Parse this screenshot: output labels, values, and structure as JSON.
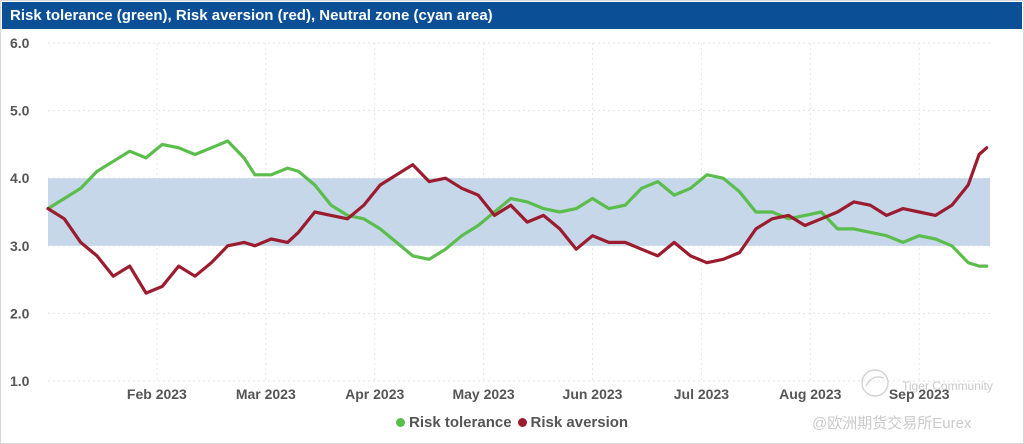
{
  "chart_data": {
    "type": "line",
    "title": "Risk tolerance (green), Risk aversion (red), Neutral zone (cyan area)",
    "xlabel": "",
    "ylabel": "",
    "ylim": [
      1.0,
      6.0
    ],
    "yticks": [
      "1.0",
      "2.0",
      "3.0",
      "4.0",
      "5.0",
      "6.0"
    ],
    "xlim": [
      0,
      8.65
    ],
    "xticks": [
      {
        "label": "Feb 2023",
        "x": 1.0
      },
      {
        "label": "Mar 2023",
        "x": 2.0
      },
      {
        "label": "Apr 2023",
        "x": 3.0
      },
      {
        "label": "May 2023",
        "x": 4.0
      },
      {
        "label": "Jun 2023",
        "x": 5.0
      },
      {
        "label": "Jul 2023",
        "x": 6.0
      },
      {
        "label": "Aug 2023",
        "x": 7.0
      },
      {
        "label": "Sep 2023",
        "x": 8.0
      }
    ],
    "band": {
      "name": "Neutral zone",
      "low": 3.0,
      "high": 4.0,
      "color": "#c5d7e9"
    },
    "series": [
      {
        "name": "Risk tolerance",
        "color": "#5bbd4b",
        "x": [
          0.0,
          0.15,
          0.3,
          0.45,
          0.6,
          0.75,
          0.9,
          1.05,
          1.2,
          1.35,
          1.5,
          1.65,
          1.8,
          1.9,
          2.05,
          2.2,
          2.3,
          2.45,
          2.6,
          2.75,
          2.9,
          3.05,
          3.2,
          3.35,
          3.5,
          3.65,
          3.8,
          3.95,
          4.1,
          4.25,
          4.4,
          4.55,
          4.7,
          4.85,
          5.0,
          5.15,
          5.3,
          5.45,
          5.6,
          5.75,
          5.9,
          6.05,
          6.2,
          6.35,
          6.5,
          6.65,
          6.8,
          6.95,
          7.1,
          7.25,
          7.4,
          7.55,
          7.7,
          7.85,
          8.0,
          8.15,
          8.3,
          8.45,
          8.55,
          8.62
        ],
        "values": [
          3.55,
          3.7,
          3.85,
          4.1,
          4.25,
          4.4,
          4.3,
          4.5,
          4.45,
          4.35,
          4.45,
          4.55,
          4.3,
          4.05,
          4.05,
          4.15,
          4.1,
          3.9,
          3.6,
          3.45,
          3.4,
          3.25,
          3.05,
          2.85,
          2.8,
          2.95,
          3.15,
          3.3,
          3.5,
          3.7,
          3.65,
          3.55,
          3.5,
          3.55,
          3.7,
          3.55,
          3.6,
          3.85,
          3.95,
          3.75,
          3.85,
          4.05,
          4.0,
          3.8,
          3.5,
          3.5,
          3.4,
          3.45,
          3.5,
          3.25,
          3.25,
          3.2,
          3.15,
          3.05,
          3.15,
          3.1,
          3.0,
          2.75,
          2.7,
          2.7
        ]
      },
      {
        "name": "Risk aversion",
        "color": "#9b1b2f",
        "x": [
          0.0,
          0.15,
          0.3,
          0.45,
          0.6,
          0.75,
          0.9,
          1.05,
          1.2,
          1.35,
          1.5,
          1.65,
          1.8,
          1.9,
          2.05,
          2.2,
          2.3,
          2.45,
          2.6,
          2.75,
          2.9,
          3.05,
          3.2,
          3.35,
          3.5,
          3.65,
          3.8,
          3.95,
          4.1,
          4.25,
          4.4,
          4.55,
          4.7,
          4.85,
          5.0,
          5.15,
          5.3,
          5.45,
          5.6,
          5.75,
          5.9,
          6.05,
          6.2,
          6.35,
          6.5,
          6.65,
          6.8,
          6.95,
          7.1,
          7.25,
          7.4,
          7.55,
          7.7,
          7.85,
          8.0,
          8.15,
          8.3,
          8.45,
          8.55,
          8.62
        ],
        "values": [
          3.55,
          3.4,
          3.05,
          2.85,
          2.55,
          2.7,
          2.3,
          2.4,
          2.7,
          2.55,
          2.75,
          3.0,
          3.05,
          3.0,
          3.1,
          3.05,
          3.2,
          3.5,
          3.45,
          3.4,
          3.6,
          3.9,
          4.05,
          4.2,
          3.95,
          4.0,
          3.85,
          3.75,
          3.45,
          3.6,
          3.35,
          3.45,
          3.25,
          2.95,
          3.15,
          3.05,
          3.05,
          2.95,
          2.85,
          3.05,
          2.85,
          2.75,
          2.8,
          2.9,
          3.25,
          3.4,
          3.45,
          3.3,
          3.4,
          3.5,
          3.65,
          3.6,
          3.45,
          3.55,
          3.5,
          3.45,
          3.6,
          3.9,
          4.35,
          4.45
        ]
      }
    ],
    "legend": [
      "Risk tolerance",
      "Risk aversion"
    ],
    "legend_position": "bottom-center",
    "grid": true
  },
  "watermark": {
    "community": "Tiger Community",
    "exchange": "@欧洲期货交易所Eurex"
  }
}
